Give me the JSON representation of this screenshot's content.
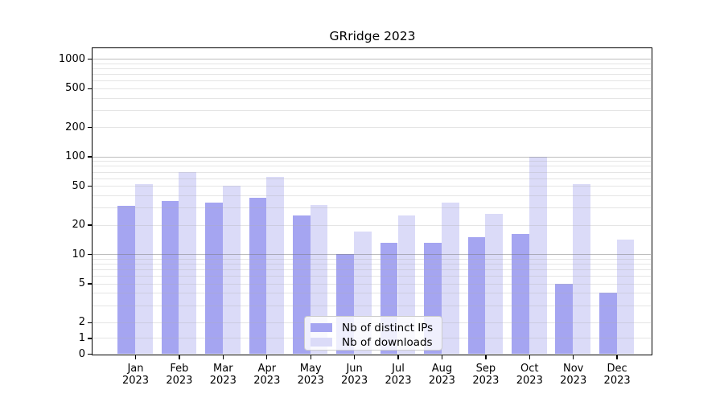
{
  "chart_data": {
    "type": "bar",
    "title": "GRridge 2023",
    "categories": [
      "Jan",
      "Feb",
      "Mar",
      "Apr",
      "May",
      "Jun",
      "Jul",
      "Aug",
      "Sep",
      "Oct",
      "Nov",
      "Dec"
    ],
    "category_year": "2023",
    "series": [
      {
        "name": "Nb of distinct IPs",
        "color": "#a5a5f1",
        "values": [
          31,
          35,
          34,
          38,
          25,
          10,
          13,
          13,
          15,
          16,
          5,
          4
        ]
      },
      {
        "name": "Nb of downloads",
        "color": "#dbdbf8",
        "values": [
          52,
          70,
          50,
          62,
          32,
          17,
          25,
          34,
          26,
          100,
          52,
          14
        ]
      }
    ],
    "y_ticks": [
      0,
      1,
      2,
      5,
      10,
      20,
      50,
      100,
      200,
      500,
      1000
    ],
    "y_major_gridlines": [
      10,
      100,
      1000
    ],
    "y_scale": "log-like (log above 2, linear 0-2)",
    "ylim": [
      0,
      1290
    ],
    "grid": true,
    "legend_position": "lower center",
    "legend_items": [
      "Nb of distinct IPs",
      "Nb of downloads"
    ]
  }
}
